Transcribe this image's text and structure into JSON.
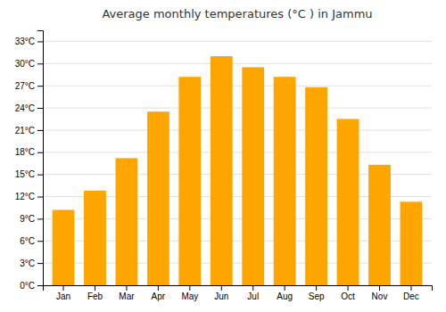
{
  "chart_data": {
    "type": "bar",
    "title": "Average monthly temperatures (°C ) in Jammu",
    "categories": [
      "Jan",
      "Feb",
      "Mar",
      "Apr",
      "May",
      "Jun",
      "Jul",
      "Aug",
      "Sep",
      "Oct",
      "Nov",
      "Dec"
    ],
    "values": [
      10.2,
      12.8,
      17.2,
      23.5,
      28.2,
      31.0,
      29.5,
      28.2,
      26.8,
      22.5,
      16.3,
      11.3
    ],
    "color": "#FFA500",
    "ylim": [
      0,
      34.5
    ],
    "yticks": [
      {
        "value": 0,
        "label": "0°C"
      },
      {
        "value": 3,
        "label": "3°C"
      },
      {
        "value": 6,
        "label": "6°C"
      },
      {
        "value": 9,
        "label": "9°C"
      },
      {
        "value": 12,
        "label": "12°C"
      },
      {
        "value": 15,
        "label": "15°C"
      },
      {
        "value": 18,
        "label": "18°C"
      },
      {
        "value": 21,
        "label": "21°C"
      },
      {
        "value": 24,
        "label": "24°C"
      },
      {
        "value": 27,
        "label": "27°C"
      },
      {
        "value": 30,
        "label": "30°C"
      },
      {
        "value": 33,
        "label": "33°C"
      }
    ],
    "grid": true
  }
}
